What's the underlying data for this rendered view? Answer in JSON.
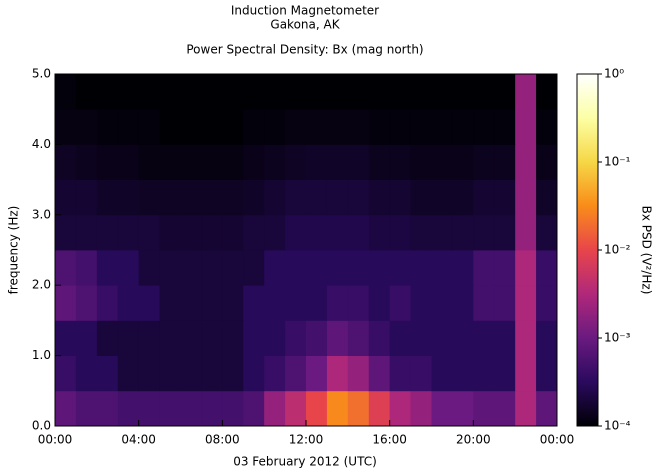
{
  "chart_data": {
    "type": "heatmap",
    "title": "Induction Magnetometer",
    "subtitle": "Gakona, AK",
    "plot_title": "Power Spectral Density: Bx (mag north)",
    "xlabel": "03 February 2012 (UTC)",
    "ylabel": "frequency (Hz)",
    "colorbar_label": "Bx PSD (V²/Hz)",
    "xlim": [
      0,
      24
    ],
    "xticks": [
      {
        "value": 0,
        "label": "00:00"
      },
      {
        "value": 4,
        "label": "04:00"
      },
      {
        "value": 8,
        "label": "08:00"
      },
      {
        "value": 12,
        "label": "12:00"
      },
      {
        "value": 16,
        "label": "16:00"
      },
      {
        "value": 20,
        "label": "20:00"
      },
      {
        "value": 24,
        "label": "00:00"
      }
    ],
    "ylim": [
      0,
      5
    ],
    "yticks": [
      {
        "value": 0,
        "label": "0.0"
      },
      {
        "value": 1,
        "label": "1.0"
      },
      {
        "value": 2,
        "label": "2.0"
      },
      {
        "value": 3,
        "label": "3.0"
      },
      {
        "value": 4,
        "label": "4.0"
      },
      {
        "value": 5,
        "label": "5.0"
      }
    ],
    "clim": [
      0.0001,
      1
    ],
    "cscale": "log",
    "cticks": [
      {
        "value": 1,
        "label": "10⁰"
      },
      {
        "value": 0.1,
        "label": "10⁻¹"
      },
      {
        "value": 0.01,
        "label": "10⁻²"
      },
      {
        "value": 0.001,
        "label": "10⁻³"
      },
      {
        "value": 0.0001,
        "label": "10⁻⁴"
      }
    ],
    "colormap": [
      "#000004",
      "#2a0a5e",
      "#6a1a80",
      "#b0287a",
      "#e8454a",
      "#f98c1a",
      "#f6d746",
      "#fcffa4",
      "#ffffff"
    ],
    "x_bins": [
      0,
      1,
      2,
      3,
      4,
      5,
      6,
      7,
      8,
      9,
      10,
      11,
      12,
      13,
      14,
      15,
      16,
      17,
      18,
      19,
      20,
      21,
      22,
      23,
      24
    ],
    "y_bins": [
      0,
      0.5,
      1,
      1.5,
      2,
      2.5,
      3,
      3.5,
      4,
      4.5,
      5
    ],
    "z": [
      [
        0.0008,
        0.0006,
        0.0006,
        0.0005,
        0.0005,
        0.0005,
        0.0005,
        0.0005,
        0.0005,
        0.0006,
        0.002,
        0.004,
        0.01,
        0.03,
        0.02,
        0.008,
        0.003,
        0.002,
        0.001,
        0.001,
        0.0008,
        0.0008,
        0.003,
        0.0008
      ],
      [
        0.0004,
        0.0003,
        0.0003,
        0.0002,
        0.0002,
        0.0002,
        0.0002,
        0.0002,
        0.0002,
        0.0003,
        0.0004,
        0.0006,
        0.001,
        0.003,
        0.002,
        0.0008,
        0.0004,
        0.0004,
        0.0003,
        0.0003,
        0.0003,
        0.0003,
        0.003,
        0.0003
      ],
      [
        0.0003,
        0.0003,
        0.0002,
        0.0002,
        0.0002,
        0.0002,
        0.0002,
        0.0002,
        0.0002,
        0.0003,
        0.0003,
        0.0004,
        0.0005,
        0.0008,
        0.0006,
        0.0004,
        0.0003,
        0.0003,
        0.0003,
        0.0003,
        0.0003,
        0.0003,
        0.003,
        0.0003
      ],
      [
        0.0008,
        0.0006,
        0.0004,
        0.0003,
        0.0003,
        0.0002,
        0.0002,
        0.0002,
        0.0002,
        0.0003,
        0.0003,
        0.0003,
        0.0003,
        0.0004,
        0.0004,
        0.0003,
        0.0004,
        0.0003,
        0.0003,
        0.0003,
        0.0005,
        0.0005,
        0.003,
        0.0004
      ],
      [
        0.0006,
        0.0005,
        0.0003,
        0.0003,
        0.0002,
        0.0002,
        0.0002,
        0.0002,
        0.0002,
        0.0002,
        0.0003,
        0.0003,
        0.0003,
        0.0003,
        0.0003,
        0.0003,
        0.0003,
        0.0003,
        0.0003,
        0.0003,
        0.0005,
        0.0005,
        0.003,
        0.0004
      ],
      [
        0.0002,
        0.0002,
        0.0002,
        0.0002,
        0.0002,
        0.00018,
        0.00018,
        0.00018,
        0.00018,
        0.0002,
        0.0002,
        0.00025,
        0.00025,
        0.00025,
        0.00025,
        0.00022,
        0.00022,
        0.0002,
        0.0002,
        0.0002,
        0.0002,
        0.0002,
        0.002,
        0.0002
      ],
      [
        0.00018,
        0.00018,
        0.00016,
        0.00016,
        0.00015,
        0.00015,
        0.00015,
        0.00015,
        0.00015,
        0.00016,
        0.00018,
        0.0002,
        0.0002,
        0.0002,
        0.0002,
        0.00018,
        0.00018,
        0.00016,
        0.00016,
        0.00016,
        0.00018,
        0.00018,
        0.002,
        0.00016
      ],
      [
        0.00015,
        0.00014,
        0.00013,
        0.00013,
        0.00012,
        0.00012,
        0.00012,
        0.00012,
        0.00012,
        0.00013,
        0.00014,
        0.00015,
        0.00016,
        0.00016,
        0.00016,
        0.00014,
        0.00014,
        0.00013,
        0.00013,
        0.00013,
        0.00014,
        0.00014,
        0.002,
        0.00013
      ],
      [
        0.00012,
        0.00012,
        0.00011,
        0.00011,
        0.00011,
        0.0001,
        0.0001,
        0.0001,
        0.0001,
        0.00011,
        0.00011,
        0.00012,
        0.00012,
        0.00012,
        0.00012,
        0.00011,
        0.00011,
        0.00011,
        0.00011,
        0.00011,
        0.00011,
        0.00011,
        0.002,
        0.00011
      ],
      [
        0.00011,
        0.0001,
        0.0001,
        0.0001,
        0.0001,
        0.0001,
        0.0001,
        0.0001,
        0.0001,
        0.0001,
        0.0001,
        0.0001,
        0.0001,
        0.0001,
        0.0001,
        0.0001,
        0.0001,
        0.0001,
        0.0001,
        0.0001,
        0.0001,
        0.0001,
        0.002,
        0.0001
      ]
    ]
  }
}
